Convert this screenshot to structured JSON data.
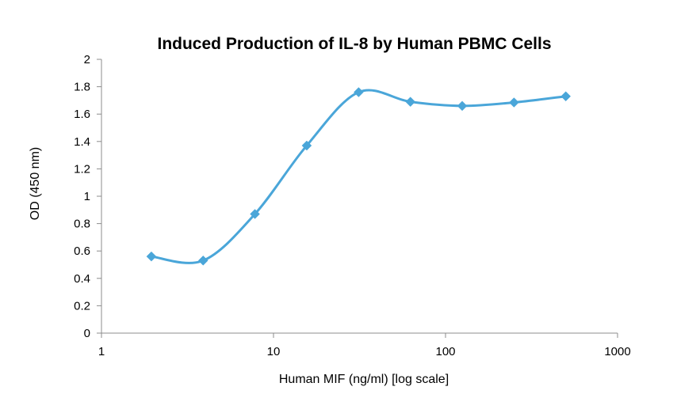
{
  "chart_data": {
    "type": "line",
    "title": "Induced Production of IL-8 by Human PBMC Cells",
    "xlabel": "Human MIF (ng/ml) [log scale]",
    "ylabel": "OD (450 nm)",
    "x_scale": "log",
    "xlim": [
      1,
      1000
    ],
    "ylim": [
      0,
      2
    ],
    "x_ticks": [
      1,
      10,
      100,
      1000
    ],
    "x_tick_labels": [
      "1",
      "10",
      "100",
      "1000"
    ],
    "y_ticks": [
      0,
      0.2,
      0.4,
      0.6,
      0.8,
      1,
      1.2,
      1.4,
      1.6,
      1.8,
      2
    ],
    "y_tick_labels": [
      "0",
      "0.2",
      "0.4",
      "0.6",
      "0.8",
      "1",
      "1.2",
      "1.4",
      "1.6",
      "1.8",
      "2"
    ],
    "grid": false,
    "smooth": true,
    "marker": "diamond",
    "series": [
      {
        "color": "#4aa6d9",
        "x": [
          1.95,
          3.9,
          7.8,
          15.6,
          31.25,
          62.5,
          125,
          250,
          500
        ],
        "y": [
          0.56,
          0.53,
          0.87,
          1.37,
          1.76,
          1.69,
          1.66,
          1.685,
          1.73
        ]
      }
    ]
  }
}
